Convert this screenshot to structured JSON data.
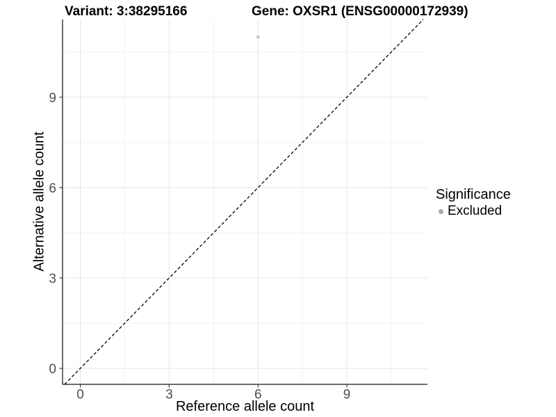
{
  "chart_data": {
    "type": "scatter",
    "title_parts": {
      "variant": "Variant: 3:38295166",
      "gene": "Gene: OXSR1 (ENSG00000172939)"
    },
    "xlabel": "Reference allele count",
    "ylabel": "Alternative allele count",
    "xlim": [
      -0.6,
      11.72
    ],
    "ylim": [
      -0.53,
      11.58
    ],
    "x_ticks": [
      0,
      3,
      6,
      9
    ],
    "y_ticks": [
      0,
      3,
      6,
      9
    ],
    "x_minor_ticks": [
      1.5,
      4.5,
      7.5,
      10.5
    ],
    "y_minor_ticks": [
      1.5,
      4.5,
      7.5,
      10.5
    ],
    "grid": "major+minor",
    "legend_position": "right",
    "series": [
      {
        "name": "Excluded",
        "color": "#c8c8c8",
        "points": [
          {
            "x": 6,
            "y": 11
          }
        ]
      }
    ],
    "reference_line": {
      "kind": "identity",
      "equation": "y = x",
      "style": "dashed",
      "color": "#000000"
    },
    "legend": {
      "title": "Significance",
      "entries": [
        {
          "label": "Excluded",
          "color": "#aaaaaa",
          "marker": "circle"
        }
      ]
    }
  }
}
